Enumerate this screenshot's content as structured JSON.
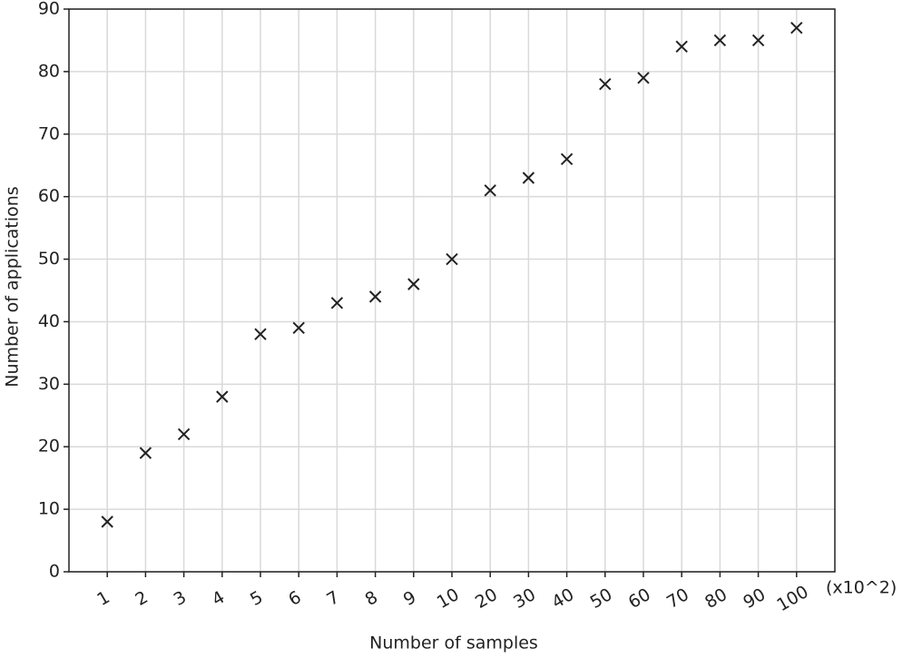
{
  "chart_data": {
    "type": "scatter",
    "x_label": "Number of samples",
    "y_label": "Number of applications",
    "x_unit_note": "(x10^2)",
    "categories": [
      "1",
      "2",
      "3",
      "4",
      "5",
      "6",
      "7",
      "8",
      "9",
      "10",
      "20",
      "30",
      "40",
      "50",
      "60",
      "70",
      "80",
      "90",
      "100"
    ],
    "values": [
      8,
      19,
      22,
      28,
      38,
      39,
      43,
      44,
      46,
      50,
      61,
      63,
      66,
      78,
      79,
      84,
      85,
      85,
      87
    ],
    "color": "#222222",
    "marker": "x",
    "ylim": [
      0,
      90
    ],
    "yticks": [
      0,
      10,
      20,
      30,
      40,
      50,
      60,
      70,
      80,
      90
    ],
    "grid": true
  }
}
